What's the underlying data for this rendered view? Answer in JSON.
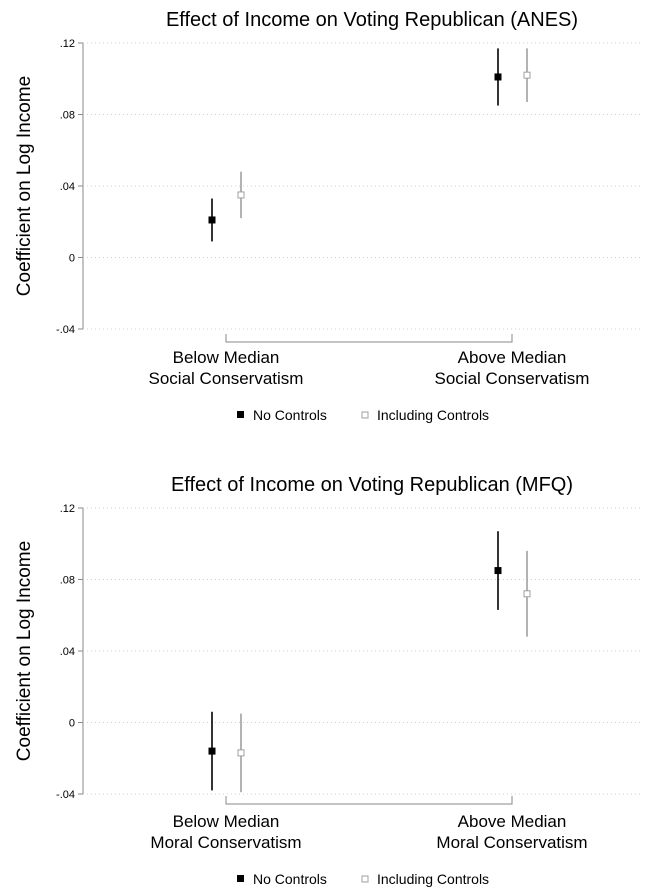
{
  "legend": {
    "no_controls": "No Controls",
    "including_controls": "Including Controls"
  },
  "colors": {
    "no_controls": "#000000",
    "including_controls": "#a0a0a0"
  },
  "chart_data": [
    {
      "type": "scatter",
      "title": "Effect of Income on Voting Republican (ANES)",
      "ylabel": "Coefficient on Log Income",
      "ylim": [
        -0.04,
        0.12
      ],
      "yticks": [
        -0.04,
        0,
        0.04,
        0.08,
        0.12
      ],
      "ytick_labels": [
        "-.04",
        "0",
        ".04",
        ".08",
        ".12"
      ],
      "grid": true,
      "legend_position": "bottom",
      "categories": [
        [
          "Below Median",
          "Social Conservatism"
        ],
        [
          "Above Median",
          "Social Conservatism"
        ]
      ],
      "series": [
        {
          "name": "No Controls",
          "values": [
            0.021,
            0.101
          ],
          "ci_low": [
            0.009,
            0.085
          ],
          "ci_high": [
            0.033,
            0.117
          ]
        },
        {
          "name": "Including Controls",
          "values": [
            0.035,
            0.102
          ],
          "ci_low": [
            0.022,
            0.087
          ],
          "ci_high": [
            0.048,
            0.117
          ]
        }
      ]
    },
    {
      "type": "scatter",
      "title": "Effect of Income on Voting Republican (MFQ)",
      "ylabel": "Coefficient on Log Income",
      "ylim": [
        -0.04,
        0.12
      ],
      "yticks": [
        -0.04,
        0,
        0.04,
        0.08,
        0.12
      ],
      "ytick_labels": [
        "-.04",
        "0",
        ".04",
        ".08",
        ".12"
      ],
      "grid": true,
      "legend_position": "bottom",
      "categories": [
        [
          "Below Median",
          "Moral Conservatism"
        ],
        [
          "Above Median",
          "Moral Conservatism"
        ]
      ],
      "series": [
        {
          "name": "No Controls",
          "values": [
            -0.016,
            0.085
          ],
          "ci_low": [
            -0.038,
            0.063
          ],
          "ci_high": [
            0.006,
            0.107
          ]
        },
        {
          "name": "Including Controls",
          "values": [
            -0.017,
            0.072
          ],
          "ci_low": [
            -0.039,
            0.048
          ],
          "ci_high": [
            0.005,
            0.096
          ]
        }
      ]
    }
  ]
}
